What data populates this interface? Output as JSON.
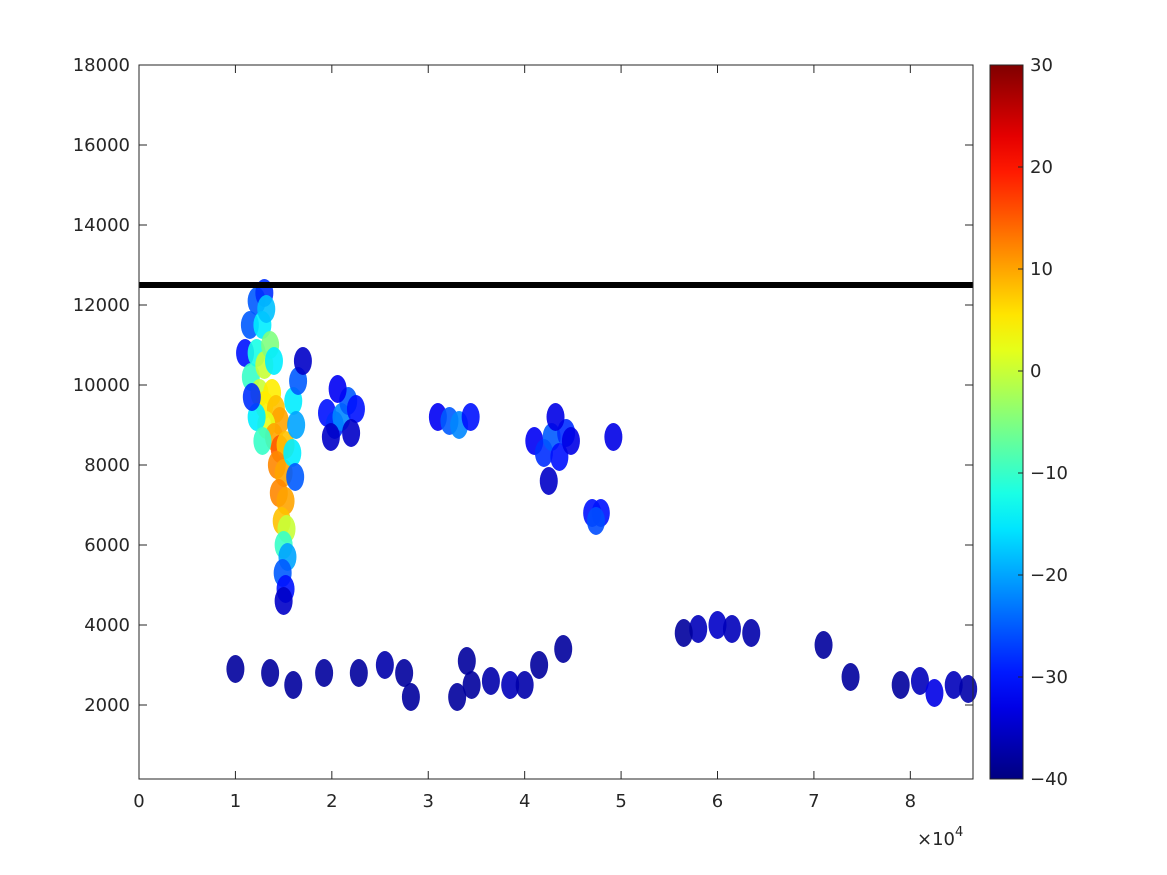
{
  "chart_data": {
    "type": "heatmap",
    "title": "",
    "xlabel": "",
    "ylabel": "",
    "xlim": [
      0,
      86500
    ],
    "ylim": [
      150,
      18000
    ],
    "grid": false,
    "x_ticks": [
      0,
      10000,
      20000,
      30000,
      40000,
      50000,
      60000,
      70000,
      80000
    ],
    "x_tick_labels": [
      "0",
      "1",
      "2",
      "3",
      "4",
      "5",
      "6",
      "7",
      "8"
    ],
    "x_exponent_label": "×10",
    "x_exponent_power": "4",
    "y_ticks": [
      2000,
      4000,
      6000,
      8000,
      10000,
      12000,
      14000,
      16000,
      18000
    ],
    "y_tick_labels": [
      "2000",
      "4000",
      "6000",
      "8000",
      "10000",
      "12000",
      "14000",
      "16000",
      "18000"
    ],
    "colorbar": {
      "placement": "right",
      "limits": [
        -40,
        30
      ],
      "colormap": "jet",
      "ticks": [
        -40,
        -30,
        -20,
        -10,
        0,
        10,
        20,
        30
      ],
      "tick_labels": [
        "−40",
        "−30",
        "−20",
        "−10",
        "0",
        "10",
        "20",
        "30"
      ]
    },
    "reference_line": {
      "y": 12500,
      "x_range": [
        0,
        86500
      ],
      "color": "#000000"
    },
    "cells": [
      {
        "x": 11000,
        "y": 10800,
        "v": -30
      },
      {
        "x": 11500,
        "y": 11500,
        "v": -25
      },
      {
        "x": 12200,
        "y": 12100,
        "v": -25
      },
      {
        "x": 13000,
        "y": 12300,
        "v": -28
      },
      {
        "x": 11600,
        "y": 10200,
        "v": -10
      },
      {
        "x": 12200,
        "y": 10800,
        "v": -12
      },
      {
        "x": 12800,
        "y": 11500,
        "v": -15
      },
      {
        "x": 13200,
        "y": 11900,
        "v": -18
      },
      {
        "x": 12500,
        "y": 9800,
        "v": 0
      },
      {
        "x": 13000,
        "y": 10500,
        "v": 0
      },
      {
        "x": 13600,
        "y": 11000,
        "v": -5
      },
      {
        "x": 14000,
        "y": 10600,
        "v": -15
      },
      {
        "x": 13000,
        "y": 9500,
        "v": 5
      },
      {
        "x": 13800,
        "y": 9800,
        "v": 5
      },
      {
        "x": 14200,
        "y": 9400,
        "v": 8
      },
      {
        "x": 14600,
        "y": 9100,
        "v": 10
      },
      {
        "x": 13200,
        "y": 9000,
        "v": 2
      },
      {
        "x": 14000,
        "y": 8700,
        "v": 10
      },
      {
        "x": 14600,
        "y": 8400,
        "v": 15
      },
      {
        "x": 15200,
        "y": 8500,
        "v": 8
      },
      {
        "x": 12200,
        "y": 9200,
        "v": -15
      },
      {
        "x": 12800,
        "y": 8600,
        "v": -10
      },
      {
        "x": 14300,
        "y": 8000,
        "v": 12
      },
      {
        "x": 15000,
        "y": 7800,
        "v": 10
      },
      {
        "x": 14500,
        "y": 7300,
        "v": 12
      },
      {
        "x": 15200,
        "y": 7100,
        "v": 10
      },
      {
        "x": 14800,
        "y": 6600,
        "v": 8
      },
      {
        "x": 15300,
        "y": 6400,
        "v": 0
      },
      {
        "x": 15000,
        "y": 6000,
        "v": -10
      },
      {
        "x": 15400,
        "y": 5700,
        "v": -20
      },
      {
        "x": 14900,
        "y": 5300,
        "v": -25
      },
      {
        "x": 15200,
        "y": 4900,
        "v": -30
      },
      {
        "x": 15000,
        "y": 4600,
        "v": -35
      },
      {
        "x": 16000,
        "y": 9600,
        "v": -15
      },
      {
        "x": 16300,
        "y": 9000,
        "v": -20
      },
      {
        "x": 16500,
        "y": 10100,
        "v": -25
      },
      {
        "x": 15900,
        "y": 8300,
        "v": -15
      },
      {
        "x": 16200,
        "y": 7700,
        "v": -25
      },
      {
        "x": 17000,
        "y": 10600,
        "v": -35
      },
      {
        "x": 11700,
        "y": 9700,
        "v": -28
      },
      {
        "x": 19500,
        "y": 9300,
        "v": -30
      },
      {
        "x": 20300,
        "y": 9000,
        "v": -28
      },
      {
        "x": 21000,
        "y": 9200,
        "v": -22
      },
      {
        "x": 21700,
        "y": 9600,
        "v": -25
      },
      {
        "x": 22500,
        "y": 9400,
        "v": -30
      },
      {
        "x": 20600,
        "y": 9900,
        "v": -32
      },
      {
        "x": 22000,
        "y": 8800,
        "v": -35
      },
      {
        "x": 19900,
        "y": 8700,
        "v": -35
      },
      {
        "x": 31000,
        "y": 9200,
        "v": -32
      },
      {
        "x": 32200,
        "y": 9100,
        "v": -25
      },
      {
        "x": 33200,
        "y": 9000,
        "v": -22
      },
      {
        "x": 34400,
        "y": 9200,
        "v": -30
      },
      {
        "x": 41000,
        "y": 8600,
        "v": -32
      },
      {
        "x": 42000,
        "y": 8300,
        "v": -28
      },
      {
        "x": 42800,
        "y": 8700,
        "v": -25
      },
      {
        "x": 43600,
        "y": 8200,
        "v": -30
      },
      {
        "x": 44300,
        "y": 8800,
        "v": -28
      },
      {
        "x": 42500,
        "y": 7600,
        "v": -35
      },
      {
        "x": 43200,
        "y": 9200,
        "v": -33
      },
      {
        "x": 44800,
        "y": 8600,
        "v": -33
      },
      {
        "x": 47000,
        "y": 6800,
        "v": -30
      },
      {
        "x": 47900,
        "y": 6800,
        "v": -30
      },
      {
        "x": 47400,
        "y": 6600,
        "v": -26
      },
      {
        "x": 49200,
        "y": 8700,
        "v": -33
      },
      {
        "x": 34500,
        "y": 2500,
        "v": -38
      },
      {
        "x": 36500,
        "y": 2600,
        "v": -37
      },
      {
        "x": 38500,
        "y": 2500,
        "v": -36
      },
      {
        "x": 40000,
        "y": 2500,
        "v": -37
      },
      {
        "x": 33000,
        "y": 2200,
        "v": -38
      },
      {
        "x": 34000,
        "y": 3100,
        "v": -38
      },
      {
        "x": 25500,
        "y": 3000,
        "v": -37
      },
      {
        "x": 27500,
        "y": 2800,
        "v": -38
      },
      {
        "x": 28200,
        "y": 2200,
        "v": -38
      },
      {
        "x": 22800,
        "y": 2800,
        "v": -38
      },
      {
        "x": 19200,
        "y": 2800,
        "v": -38
      },
      {
        "x": 13600,
        "y": 2800,
        "v": -38
      },
      {
        "x": 16000,
        "y": 2500,
        "v": -38
      },
      {
        "x": 44000,
        "y": 3400,
        "v": -38
      },
      {
        "x": 41500,
        "y": 3000,
        "v": -38
      },
      {
        "x": 58000,
        "y": 3900,
        "v": -36
      },
      {
        "x": 60000,
        "y": 4000,
        "v": -35
      },
      {
        "x": 61500,
        "y": 3900,
        "v": -36
      },
      {
        "x": 63500,
        "y": 3800,
        "v": -37
      },
      {
        "x": 56500,
        "y": 3800,
        "v": -38
      },
      {
        "x": 71000,
        "y": 3500,
        "v": -38
      },
      {
        "x": 79000,
        "y": 2500,
        "v": -38
      },
      {
        "x": 81000,
        "y": 2600,
        "v": -36
      },
      {
        "x": 82500,
        "y": 2300,
        "v": -33
      },
      {
        "x": 84500,
        "y": 2500,
        "v": -36
      },
      {
        "x": 86000,
        "y": 2400,
        "v": -37
      },
      {
        "x": 10000,
        "y": 2900,
        "v": -38
      },
      {
        "x": 73800,
        "y": 2700,
        "v": -38
      }
    ]
  }
}
